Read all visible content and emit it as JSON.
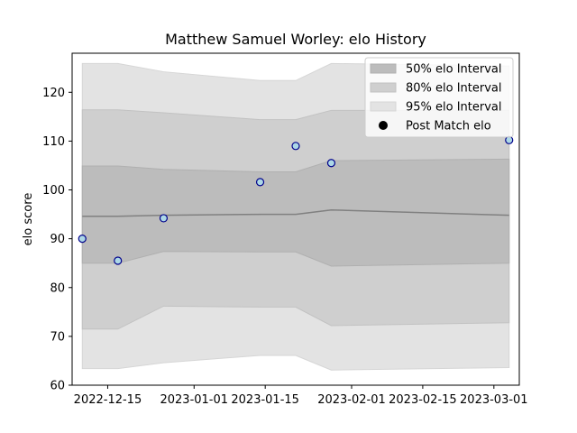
{
  "chart_data": {
    "type": "area",
    "title": "Matthew Samuel Worley: elo History",
    "xlabel": "",
    "ylabel": "elo score",
    "x_type": "date",
    "xlim": [
      "2022-12-08",
      "2023-03-06"
    ],
    "ylim": [
      60,
      128
    ],
    "x_ticks": [
      "2022-12-15",
      "2023-01-01",
      "2023-01-15",
      "2023-02-01",
      "2023-02-15",
      "2023-03-01"
    ],
    "y_ticks": [
      60,
      70,
      80,
      90,
      100,
      110,
      120
    ],
    "grid": false,
    "legend_position": "top-right",
    "band_dates": [
      "2022-12-10",
      "2022-12-17",
      "2022-12-26",
      "2023-01-14",
      "2023-01-21",
      "2023-01-28",
      "2023-03-04"
    ],
    "mean_line": [
      94.6,
      94.6,
      94.8,
      95.0,
      95.0,
      95.9,
      94.8
    ],
    "bands": [
      {
        "name": "95% elo Interval",
        "color": "#e3e3e3",
        "edge": "#d6d6d6",
        "upper": [
          125.9,
          125.9,
          124.2,
          122.4,
          122.4,
          125.9,
          125.4
        ],
        "lower": [
          63.4,
          63.4,
          64.6,
          66.1,
          66.1,
          63.1,
          63.6
        ]
      },
      {
        "name": "80% elo Interval",
        "color": "#cfcfcf",
        "edge": "#c2c2c2",
        "upper": [
          116.4,
          116.4,
          115.8,
          114.4,
          114.4,
          116.3,
          116.3
        ],
        "lower": [
          71.5,
          71.5,
          76.2,
          76.0,
          76.0,
          72.2,
          72.8
        ]
      },
      {
        "name": "50% elo Interval",
        "color": "#bcbcbc",
        "edge": "#b0b0b0",
        "upper": [
          104.9,
          104.9,
          104.2,
          103.7,
          103.7,
          106.0,
          106.3
        ],
        "lower": [
          85.0,
          85.0,
          87.4,
          87.3,
          87.3,
          84.4,
          85.0
        ]
      }
    ],
    "legend_order": [
      "50% elo Interval",
      "80% elo Interval",
      "95% elo Interval",
      "Post Match elo"
    ],
    "points": {
      "name": "Post Match elo",
      "fill": "#add8e6",
      "edge": "#00008b",
      "x": [
        "2022-12-10",
        "2022-12-17",
        "2022-12-26",
        "2023-01-14",
        "2023-01-21",
        "2023-01-28",
        "2023-03-04"
      ],
      "y": [
        90.0,
        85.5,
        94.2,
        101.6,
        109.0,
        105.5,
        110.2
      ]
    }
  }
}
